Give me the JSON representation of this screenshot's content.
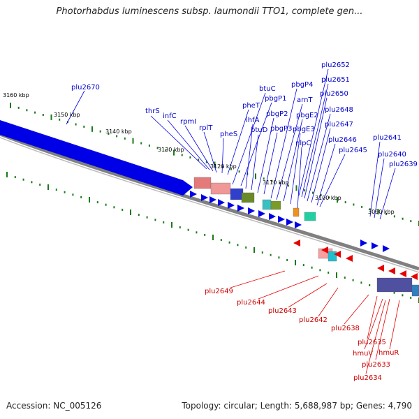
{
  "title": "Photorhabdus luminescens subsp. laumondii TTO1, complete gen...",
  "footer": {
    "accession": "Accession: NC_005126",
    "stats": "Topology: circular; Length: 5,688,987 bp; Genes: 4,790"
  },
  "colors": {
    "forward": "#0000e6",
    "reverse": "#e60000",
    "tick": "#1a7a1a",
    "backbone": "#808080"
  },
  "scale_labels": [
    "3160 kbp",
    "3150 kbp",
    "3140 kbp",
    "3130 kbp",
    "3120 kbp",
    "3110 kbp",
    "3100 kbp",
    "3090 kbp"
  ],
  "forward_labels": [
    "plu2670",
    "thrS",
    "infC",
    "rpmI",
    "rplT",
    "pheS",
    "pheT",
    "btuC",
    "pbgP1",
    "ihfA",
    "btuD",
    "pbgP2",
    "pbgP3",
    "pbgP4",
    "arnT",
    "pbgE2",
    "pbgE3",
    "nlpC",
    "plu2652",
    "plu2651",
    "plu2650",
    "plu2648",
    "plu2647",
    "plu2646",
    "plu2645",
    "plu2641",
    "plu2640",
    "plu2639"
  ],
  "reverse_labels": [
    "plu2649",
    "plu2644",
    "plu2643",
    "plu2642",
    "plu2638",
    "plu2635",
    "hmuV",
    "hmuR",
    "plu2633",
    "plu2634"
  ]
}
